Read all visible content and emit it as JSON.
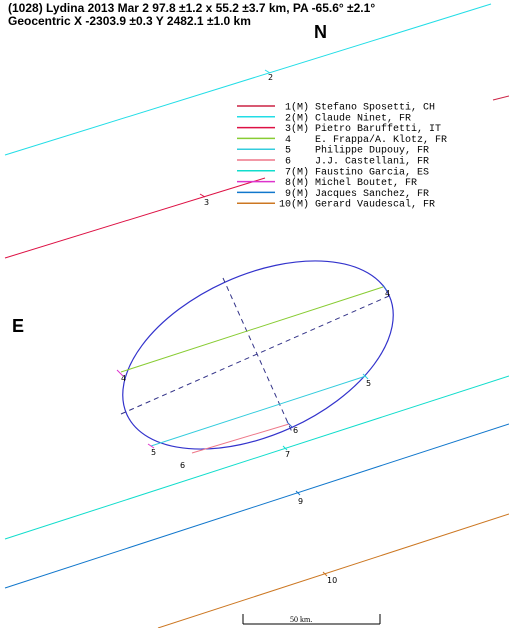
{
  "header": {
    "line1": "(1028) Lydina 2013 Mar 2  97.8 ±1.2 x 55.2 ±3.7 km, PA -65.6° ±2.1°",
    "line2": "Geocentric X -2303.9 ±0.3  Y 2482.1 ±1.0 km"
  },
  "directions": {
    "north": "N",
    "east": "E"
  },
  "scale_bar": {
    "label": "50 km."
  },
  "colors": {
    "ellipse": "#3333cc",
    "axes": "#333388"
  },
  "legend": [
    {
      "num": "1",
      "flag": "(M)",
      "observer": "Stefano Sposetti, CH",
      "color": "#cc2244"
    },
    {
      "num": "2",
      "flag": "(M)",
      "observer": "Claude Ninet, FR",
      "color": "#22dde6"
    },
    {
      "num": "3",
      "flag": "(M)",
      "observer": "Pietro Baruffetti, IT",
      "color": "#dd1144"
    },
    {
      "num": "4",
      "flag": "",
      "observer": "E. Frappa/A. Klotz, FR",
      "color": "#88cc33"
    },
    {
      "num": "5",
      "flag": "",
      "observer": "Philippe Dupouy, FR",
      "color": "#33ccdd"
    },
    {
      "num": "6",
      "flag": "",
      "observer": "J.J. Castellani, FR",
      "color": "#ee7788"
    },
    {
      "num": "7",
      "flag": "(M)",
      "observer": "Faustino Garcia, ES",
      "color": "#11ddcc"
    },
    {
      "num": "8",
      "flag": "(M)",
      "observer": "Michel Boutet, FR",
      "color": "#dd33cc"
    },
    {
      "num": "9",
      "flag": "(M)",
      "observer": "Jacques Sanchez, FR",
      "color": "#1177cc"
    },
    {
      "num": "10",
      "flag": "(M)",
      "observer": "Gerard Vaudescal, FR",
      "color": "#cc7722"
    }
  ],
  "chord_labels": [
    "2",
    "3",
    "4",
    "4",
    "5",
    "5",
    "6",
    "6",
    "7",
    "9",
    "10"
  ]
}
